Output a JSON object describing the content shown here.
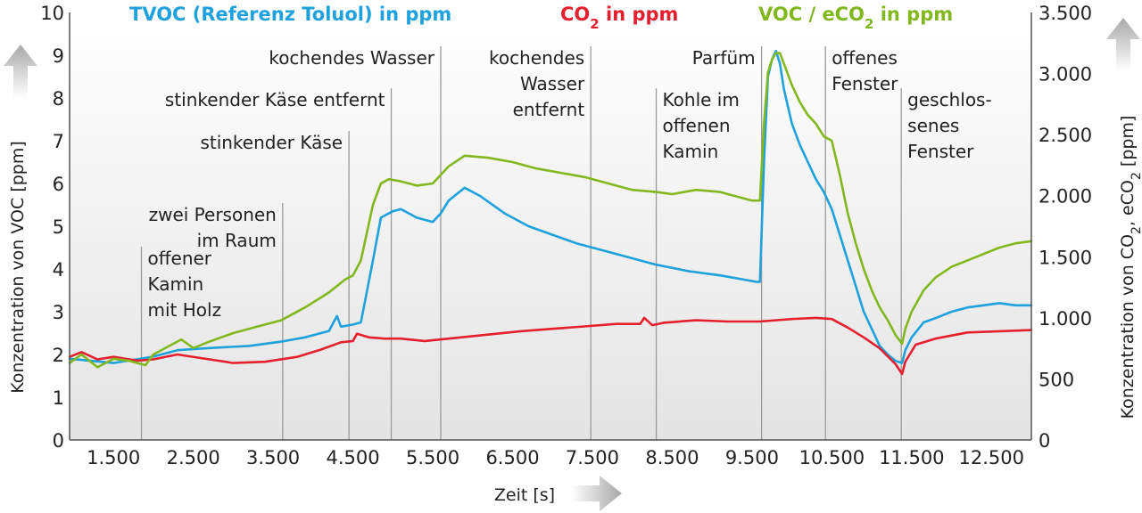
{
  "chart_data": {
    "type": "line",
    "xlabel": "Zeit [s]",
    "ylabel_left": "Konzentration von VOC [ppm]",
    "ylabel_right_parts": [
      "Konzentration von CO",
      "2",
      ", eCO",
      "2",
      " [ppm]"
    ],
    "xlim": [
      950,
      13000
    ],
    "ylim_left": [
      0,
      10
    ],
    "ylim_right": [
      0,
      3500
    ],
    "x_ticks": [
      1500,
      2500,
      3500,
      4500,
      5500,
      6500,
      7500,
      8500,
      9500,
      10500,
      11500,
      12500
    ],
    "x_tick_labels": [
      "1.500",
      "2.500",
      "3.500",
      "4.500",
      "5.500",
      "6.500",
      "7.500",
      "8.500",
      "9.500",
      "10.500",
      "11.500",
      "12.500"
    ],
    "y_left_ticks": [
      0,
      1,
      2,
      3,
      4,
      5,
      6,
      7,
      8,
      9,
      10
    ],
    "y_left_tick_labels": [
      "0",
      "1",
      "2",
      "3",
      "4",
      "5",
      "6",
      "7",
      "8",
      "9",
      "10"
    ],
    "y_right_ticks": [
      0,
      500,
      1000,
      1500,
      2000,
      2500,
      3000,
      3500
    ],
    "y_right_tick_labels": [
      "0",
      "500",
      "1.000",
      "1.500",
      "2.000",
      "2.500",
      "3.000",
      "3.500"
    ],
    "legend": [
      {
        "parts": [
          "TVOC (Referenz Toluol) in ppm"
        ],
        "color": "#1ea1dc"
      },
      {
        "parts": [
          "CO",
          "2",
          " in ppm"
        ],
        "color": "#e5202e"
      },
      {
        "parts": [
          "VOC / eCO",
          "2",
          " in ppm"
        ],
        "color": "#82b81e"
      }
    ],
    "series": [
      {
        "name": "TVOC (Referenz Toluol) in ppm",
        "axis": "left",
        "color": "#1ea1dc",
        "x": [
          950,
          1500,
          2000,
          2300,
          2700,
          3200,
          3600,
          3900,
          4200,
          4300,
          4350,
          4500,
          4600,
          4750,
          4850,
          5000,
          5100,
          5300,
          5500,
          5600,
          5700,
          5900,
          6100,
          6400,
          6700,
          7000,
          7300,
          7600,
          7900,
          8300,
          8700,
          9100,
          9550,
          9600,
          9650,
          9700,
          9750,
          9800,
          9850,
          9900,
          10000,
          10100,
          10200,
          10300,
          10400,
          10500,
          10600,
          10700,
          10800,
          10900,
          11000,
          11100,
          11200,
          11300,
          11380,
          11420,
          11500,
          11650,
          11800,
          12000,
          12200,
          12400,
          12600,
          12800,
          13000
        ],
        "y": [
          1.9,
          1.8,
          1.95,
          2.1,
          2.15,
          2.2,
          2.3,
          2.4,
          2.55,
          2.9,
          2.65,
          2.7,
          2.75,
          4.2,
          5.2,
          5.35,
          5.4,
          5.2,
          5.1,
          5.3,
          5.6,
          5.9,
          5.7,
          5.3,
          5.0,
          4.8,
          4.6,
          4.45,
          4.3,
          4.1,
          3.95,
          3.85,
          3.7,
          3.7,
          6.5,
          8.5,
          8.9,
          9.1,
          8.8,
          8.2,
          7.4,
          6.9,
          6.5,
          6.1,
          5.8,
          5.4,
          4.8,
          4.2,
          3.6,
          3.0,
          2.6,
          2.2,
          2.0,
          1.85,
          1.8,
          2.1,
          2.4,
          2.75,
          2.85,
          3.0,
          3.1,
          3.15,
          3.2,
          3.15,
          3.15
        ]
      },
      {
        "name": "CO2 in ppm",
        "axis": "right",
        "color": "#e5202e",
        "x": [
          950,
          1100,
          1300,
          1500,
          1800,
          2000,
          2300,
          2600,
          3000,
          3400,
          3800,
          4100,
          4350,
          4500,
          4550,
          4700,
          4900,
          5100,
          5400,
          5700,
          6000,
          6300,
          6600,
          7000,
          7400,
          7800,
          8100,
          8150,
          8250,
          8400,
          8800,
          9200,
          9600,
          10000,
          10300,
          10500,
          10700,
          10900,
          11100,
          11300,
          11380,
          11420,
          11550,
          11800,
          12200,
          12600,
          13000
        ],
        "y": [
          680,
          720,
          660,
          680,
          650,
          660,
          700,
          670,
          630,
          640,
          680,
          740,
          800,
          810,
          870,
          840,
          830,
          830,
          810,
          830,
          850,
          870,
          890,
          910,
          930,
          950,
          950,
          1000,
          940,
          960,
          980,
          970,
          970,
          990,
          1000,
          990,
          920,
          840,
          750,
          620,
          540,
          640,
          780,
          830,
          880,
          890,
          900
        ]
      },
      {
        "name": "VOC / eCO2 in ppm",
        "axis": "left",
        "color": "#82b81e",
        "x": [
          950,
          1100,
          1300,
          1500,
          1700,
          1800,
          1900,
          2000,
          2200,
          2350,
          2500,
          2700,
          3000,
          3300,
          3600,
          3900,
          4200,
          4400,
          4500,
          4600,
          4750,
          4850,
          4950,
          5100,
          5300,
          5500,
          5600,
          5700,
          5900,
          6200,
          6500,
          6800,
          7100,
          7400,
          7700,
          8000,
          8300,
          8500,
          8800,
          9100,
          9500,
          9600,
          9650,
          9700,
          9750,
          9800,
          9850,
          9900,
          10000,
          10100,
          10200,
          10300,
          10400,
          10500,
          10600,
          10700,
          10800,
          10900,
          11000,
          11100,
          11200,
          11300,
          11380,
          11420,
          11500,
          11650,
          11800,
          12000,
          12200,
          12400,
          12600,
          12800,
          13000
        ],
        "y": [
          1.8,
          2.0,
          1.7,
          1.9,
          1.85,
          1.8,
          1.75,
          2.0,
          2.2,
          2.35,
          2.15,
          2.3,
          2.5,
          2.65,
          2.8,
          3.1,
          3.45,
          3.75,
          3.85,
          4.2,
          5.5,
          6.0,
          6.1,
          6.05,
          5.95,
          6.0,
          6.2,
          6.4,
          6.65,
          6.6,
          6.5,
          6.35,
          6.25,
          6.15,
          6.0,
          5.85,
          5.8,
          5.75,
          5.85,
          5.8,
          5.6,
          5.6,
          7.4,
          8.6,
          8.9,
          9.05,
          9.05,
          8.8,
          8.3,
          7.9,
          7.6,
          7.4,
          7.1,
          7.0,
          6.2,
          5.3,
          4.6,
          4.0,
          3.5,
          3.1,
          2.8,
          2.45,
          2.25,
          2.6,
          3.0,
          3.5,
          3.8,
          4.05,
          4.2,
          4.35,
          4.5,
          4.6,
          4.65
        ]
      }
    ],
    "events": [
      {
        "x": 1850,
        "lines": [
          "offener",
          "Kamin",
          "mit Holz"
        ],
        "align": "start"
      },
      {
        "x": 3620,
        "lines": [
          "zwei Personen",
          "im Raum"
        ],
        "align": "end"
      },
      {
        "x": 4450,
        "lines": [
          "stinkender Käse"
        ],
        "align": "end"
      },
      {
        "x": 4980,
        "lines": [
          "stinkender Käse entfernt"
        ],
        "align": "end"
      },
      {
        "x": 5600,
        "lines": [
          "kochendes Wasser"
        ],
        "align": "end"
      },
      {
        "x": 7480,
        "lines": [
          "kochendes",
          "Wasser",
          "entfernt"
        ],
        "align": "end"
      },
      {
        "x": 8300,
        "lines": [
          "Kohle im",
          "offenen",
          "Kamin"
        ],
        "align": "start"
      },
      {
        "x": 9620,
        "lines": [
          "Parfüm"
        ],
        "align": "end"
      },
      {
        "x": 10420,
        "lines": [
          "offenes",
          "Fenster"
        ],
        "align": "start"
      },
      {
        "x": 11370,
        "lines": [
          "geschlos-",
          "senes",
          "Fenster"
        ],
        "align": "start"
      }
    ]
  }
}
